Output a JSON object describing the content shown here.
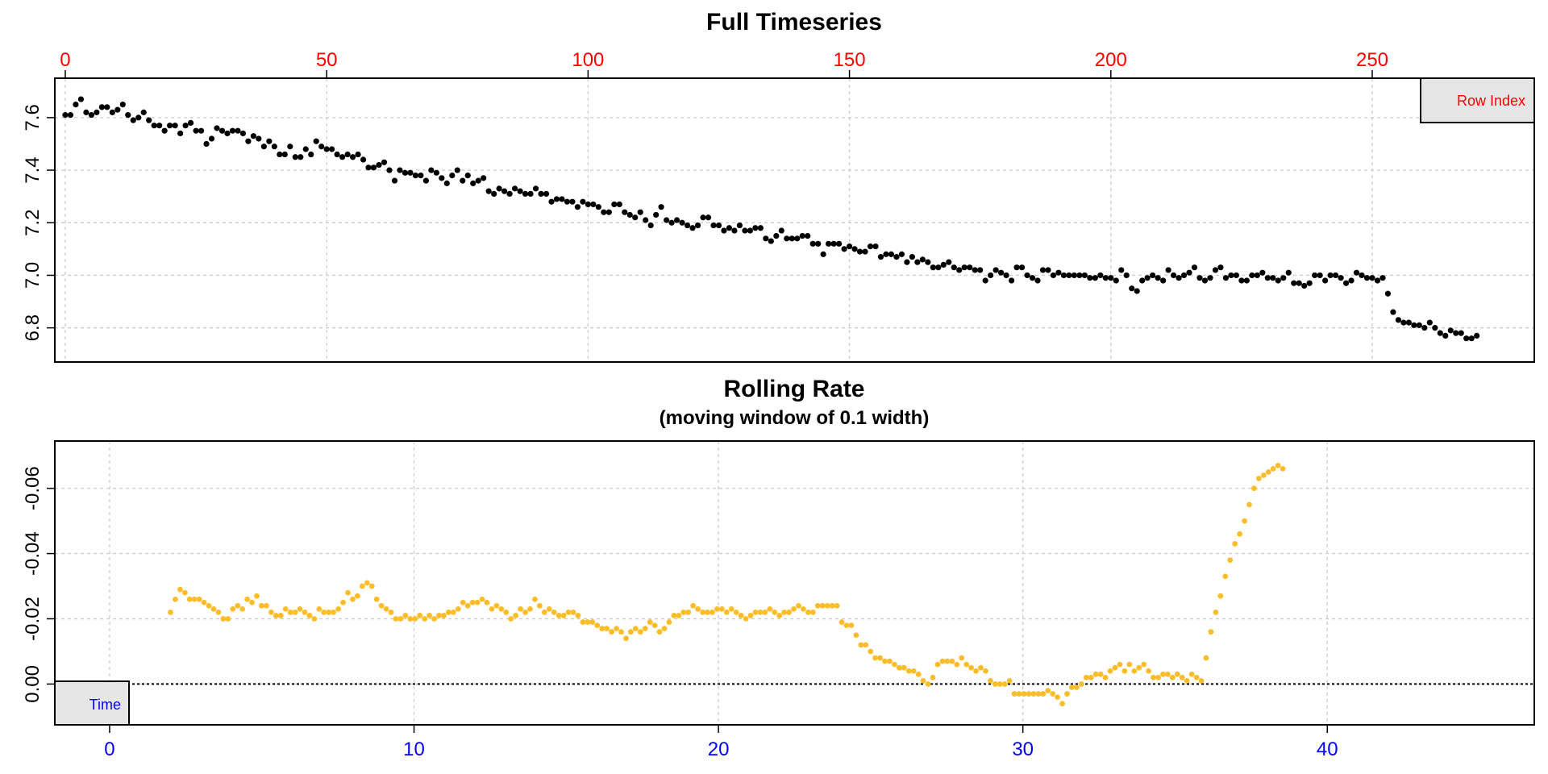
{
  "chart_data": [
    {
      "type": "scatter",
      "title": "Full Timeseries",
      "x_axis": {
        "position": "top",
        "label_color": "#ff0000",
        "range": [
          -2,
          281
        ],
        "ticks": [
          0,
          50,
          100,
          150,
          200,
          250
        ]
      },
      "y_axis": {
        "range": [
          6.67,
          7.75
        ],
        "ticks": [
          6.8,
          7.0,
          7.2,
          7.4,
          7.6
        ],
        "labels": [
          "6.8",
          "7.0",
          "7.2",
          "7.4",
          "7.6"
        ],
        "label_rotation": -90
      },
      "grid": true,
      "legend": {
        "placement": "top-right",
        "text": "Row Index",
        "text_color": "#ff0000"
      },
      "point_color": "#000000",
      "series": [
        {
          "x_start": 0,
          "x_step": 1,
          "y": [
            7.61,
            7.61,
            7.65,
            7.67,
            7.62,
            7.61,
            7.62,
            7.64,
            7.64,
            7.62,
            7.63,
            7.65,
            7.61,
            7.59,
            7.6,
            7.62,
            7.59,
            7.57,
            7.57,
            7.55,
            7.57,
            7.57,
            7.54,
            7.57,
            7.58,
            7.55,
            7.55,
            7.5,
            7.52,
            7.56,
            7.55,
            7.54,
            7.55,
            7.55,
            7.54,
            7.51,
            7.53,
            7.52,
            7.49,
            7.51,
            7.49,
            7.46,
            7.46,
            7.49,
            7.45,
            7.45,
            7.48,
            7.46,
            7.51,
            7.49,
            7.48,
            7.48,
            7.46,
            7.45,
            7.46,
            7.45,
            7.46,
            7.44,
            7.41,
            7.41,
            7.42,
            7.43,
            7.4,
            7.36,
            7.4,
            7.39,
            7.39,
            7.38,
            7.38,
            7.36,
            7.4,
            7.39,
            7.37,
            7.35,
            7.38,
            7.4,
            7.36,
            7.38,
            7.35,
            7.36,
            7.37,
            7.32,
            7.31,
            7.33,
            7.32,
            7.31,
            7.33,
            7.32,
            7.31,
            7.31,
            7.33,
            7.31,
            7.31,
            7.28,
            7.29,
            7.29,
            7.28,
            7.28,
            7.26,
            7.28,
            7.27,
            7.27,
            7.26,
            7.24,
            7.24,
            7.27,
            7.27,
            7.24,
            7.23,
            7.22,
            7.24,
            7.21,
            7.19,
            7.23,
            7.26,
            7.21,
            7.2,
            7.21,
            7.2,
            7.19,
            7.18,
            7.19,
            7.22,
            7.22,
            7.19,
            7.19,
            7.17,
            7.18,
            7.17,
            7.19,
            7.17,
            7.17,
            7.18,
            7.18,
            7.14,
            7.13,
            7.15,
            7.17,
            7.14,
            7.14,
            7.14,
            7.15,
            7.15,
            7.12,
            7.12,
            7.08,
            7.12,
            7.12,
            7.12,
            7.1,
            7.11,
            7.1,
            7.09,
            7.09,
            7.11,
            7.11,
            7.07,
            7.08,
            7.08,
            7.07,
            7.08,
            7.05,
            7.07,
            7.05,
            7.06,
            7.05,
            7.03,
            7.03,
            7.04,
            7.05,
            7.03,
            7.02,
            7.03,
            7.03,
            7.02,
            7.02,
            6.98,
            7.0,
            7.02,
            7.01,
            7.0,
            6.98,
            7.03,
            7.03,
            7.0,
            6.99,
            6.98,
            7.02,
            7.02,
            7.0,
            7.01,
            7.0,
            7.0,
            7.0,
            7.0,
            7.0,
            6.99,
            6.99,
            7.0,
            6.99,
            6.99,
            6.98,
            7.02,
            7.0,
            6.95,
            6.94,
            6.98,
            6.99,
            7.0,
            6.99,
            6.98,
            7.02,
            7.0,
            6.99,
            7.0,
            7.01,
            7.03,
            6.99,
            6.98,
            6.99,
            7.02,
            7.03,
            6.99,
            7.0,
            7.0,
            6.98,
            6.98,
            7.0,
            7.0,
            7.01,
            6.99,
            6.99,
            6.98,
            6.99,
            7.01,
            6.97,
            6.97,
            6.96,
            6.97,
            7.0,
            7.0,
            6.98,
            7.0,
            7.0,
            6.99,
            6.97,
            6.98,
            7.01,
            7.0,
            6.99,
            6.99,
            6.98,
            6.99,
            6.93,
            6.86,
            6.83,
            6.82,
            6.82,
            6.81,
            6.81,
            6.8,
            6.82,
            6.8,
            6.78,
            6.77,
            6.79,
            6.78,
            6.78,
            6.76,
            6.76,
            6.77
          ]
        }
      ]
    },
    {
      "type": "scatter",
      "title": "Rolling Rate",
      "subtitle": "(moving window of 0.1 width)",
      "x_axis": {
        "position": "bottom",
        "label_color": "#0000ff",
        "range": [
          -1.8,
          46.8
        ],
        "ticks": [
          0,
          10,
          20,
          30,
          40
        ]
      },
      "y_axis": {
        "range": [
          0.0125,
          -0.0745
        ],
        "ticks": [
          0.0,
          -0.02,
          -0.04,
          -0.06
        ],
        "labels": [
          "0.00",
          "-0.02",
          "-0.04",
          "-0.06"
        ],
        "label_rotation": -90
      },
      "grid": true,
      "reference_line": {
        "y": 0.0,
        "style": "dotted"
      },
      "legend": {
        "placement": "bottom-left",
        "text": "Time",
        "text_color": "#0000ff"
      },
      "point_color": "#fbbd2c",
      "series": [
        {
          "x_start": 2.0,
          "x_step": 0.1575,
          "y": [
            -0.022,
            -0.026,
            -0.029,
            -0.028,
            -0.026,
            -0.026,
            -0.026,
            -0.025,
            -0.024,
            -0.023,
            -0.022,
            -0.02,
            -0.02,
            -0.023,
            -0.024,
            -0.023,
            -0.026,
            -0.025,
            -0.027,
            -0.024,
            -0.024,
            -0.022,
            -0.021,
            -0.021,
            -0.023,
            -0.022,
            -0.022,
            -0.023,
            -0.022,
            -0.021,
            -0.02,
            -0.023,
            -0.022,
            -0.022,
            -0.022,
            -0.023,
            -0.025,
            -0.028,
            -0.026,
            -0.027,
            -0.03,
            -0.031,
            -0.03,
            -0.026,
            -0.024,
            -0.023,
            -0.022,
            -0.02,
            -0.02,
            -0.021,
            -0.02,
            -0.02,
            -0.021,
            -0.02,
            -0.021,
            -0.02,
            -0.021,
            -0.021,
            -0.022,
            -0.022,
            -0.023,
            -0.025,
            -0.024,
            -0.025,
            -0.025,
            -0.026,
            -0.025,
            -0.023,
            -0.024,
            -0.023,
            -0.022,
            -0.02,
            -0.021,
            -0.023,
            -0.022,
            -0.023,
            -0.026,
            -0.024,
            -0.022,
            -0.023,
            -0.022,
            -0.021,
            -0.021,
            -0.022,
            -0.022,
            -0.021,
            -0.019,
            -0.019,
            -0.019,
            -0.018,
            -0.017,
            -0.017,
            -0.016,
            -0.017,
            -0.016,
            -0.014,
            -0.016,
            -0.017,
            -0.016,
            -0.017,
            -0.019,
            -0.018,
            -0.016,
            -0.017,
            -0.019,
            -0.021,
            -0.021,
            -0.022,
            -0.022,
            -0.024,
            -0.023,
            -0.022,
            -0.022,
            -0.022,
            -0.023,
            -0.023,
            -0.022,
            -0.023,
            -0.022,
            -0.021,
            -0.02,
            -0.021,
            -0.022,
            -0.022,
            -0.022,
            -0.023,
            -0.022,
            -0.021,
            -0.022,
            -0.022,
            -0.023,
            -0.024,
            -0.023,
            -0.022,
            -0.022,
            -0.024,
            -0.024,
            -0.024,
            -0.024,
            -0.024,
            -0.019,
            -0.018,
            -0.018,
            -0.015,
            -0.012,
            -0.012,
            -0.01,
            -0.008,
            -0.008,
            -0.007,
            -0.007,
            -0.006,
            -0.005,
            -0.005,
            -0.004,
            -0.004,
            -0.003,
            -0.001,
            0.0,
            -0.002,
            -0.006,
            -0.007,
            -0.007,
            -0.007,
            -0.006,
            -0.008,
            -0.006,
            -0.005,
            -0.004,
            -0.005,
            -0.004,
            -0.001,
            0.0,
            0.0,
            0.0,
            -0.001,
            0.003,
            0.003,
            0.003,
            0.003,
            0.003,
            0.003,
            0.003,
            0.002,
            0.003,
            0.004,
            0.006,
            0.003,
            0.001,
            0.001,
            0.0,
            -0.002,
            -0.002,
            -0.003,
            -0.003,
            -0.002,
            -0.004,
            -0.005,
            -0.006,
            -0.004,
            -0.006,
            -0.004,
            -0.005,
            -0.006,
            -0.004,
            -0.002,
            -0.002,
            -0.003,
            -0.003,
            -0.002,
            -0.003,
            -0.002,
            -0.001,
            -0.003,
            -0.002,
            -0.001,
            -0.008,
            -0.016,
            -0.022,
            -0.027,
            -0.033,
            -0.038,
            -0.043,
            -0.046,
            -0.05,
            -0.055,
            -0.06,
            -0.063,
            -0.064,
            -0.065,
            -0.066,
            -0.067,
            -0.066
          ]
        }
      ]
    }
  ]
}
